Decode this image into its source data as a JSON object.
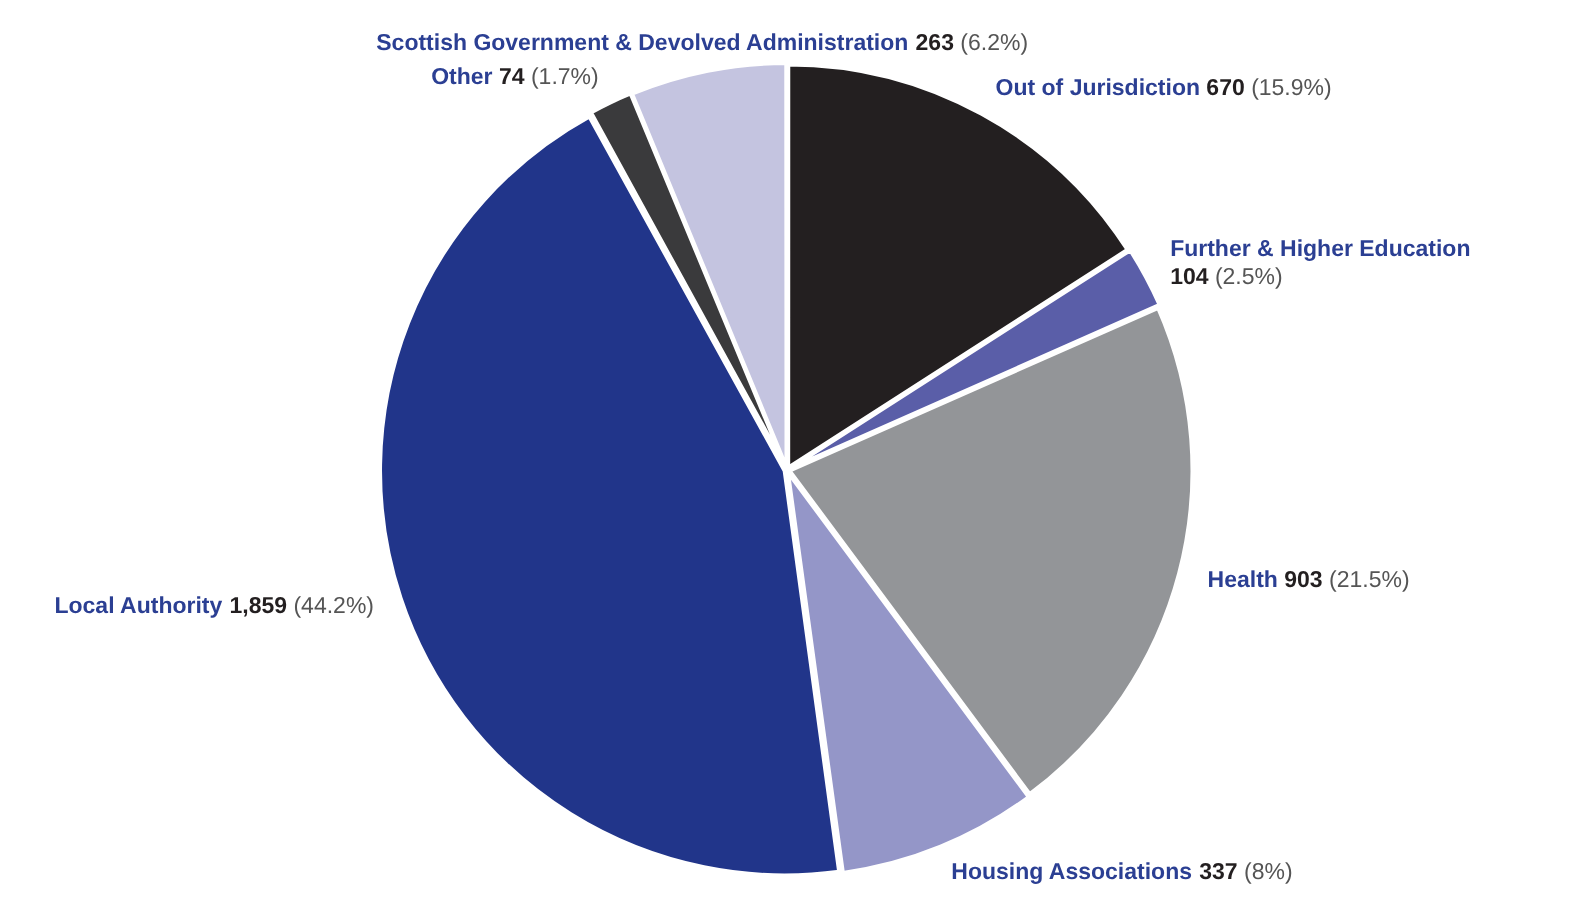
{
  "chart_data": {
    "type": "pie",
    "categories": [
      "Out of Jurisdiction",
      "Further & Higher Education",
      "Health",
      "Housing Associations",
      "Local Authority",
      "Other",
      "Scottish Government & Devolved Administration"
    ],
    "values": [
      670,
      104,
      903,
      337,
      1859,
      74,
      263
    ],
    "value_labels": [
      "670 (15.9%)",
      "104 (2.5%)",
      "903 (21.5%)",
      "337 (8%)",
      "1,859 (44.2%)",
      "74 (1.7%)",
      "263 (6.2%)"
    ],
    "colors": [
      "#231f20",
      "#5a5ea8",
      "#939598",
      "#9496c8",
      "#21358a",
      "#3a3a3c",
      "#c4c4e0"
    ],
    "legend": false
  }
}
